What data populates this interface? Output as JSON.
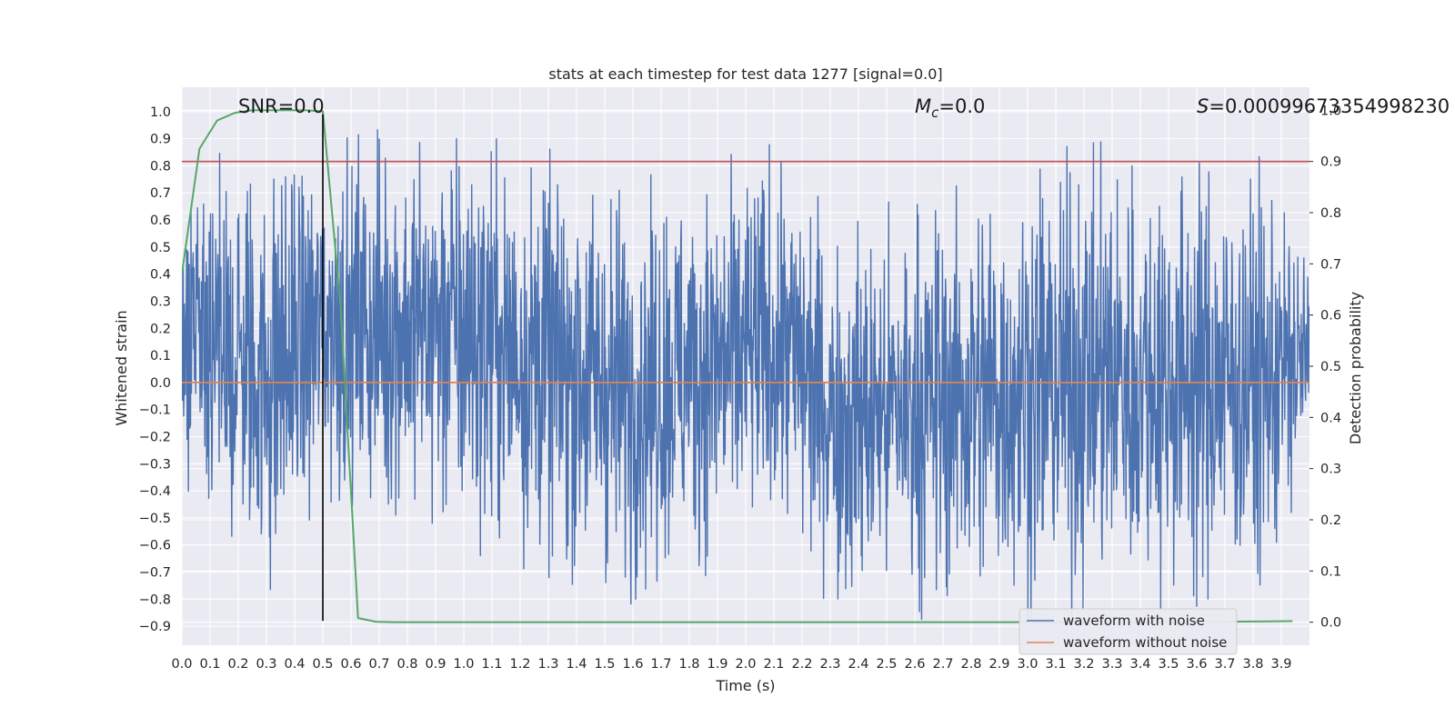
{
  "chart_data": {
    "type": "line",
    "title": "stats at each timestep for test data 1277 [signal=0.0]",
    "xlabel": "Time (s)",
    "ylabel": "Whitened strain",
    "y2label": "Detection probability",
    "xlim": [
      0.0,
      4.0
    ],
    "ylim": [
      -0.97,
      1.09
    ],
    "y2lim": [
      -0.045,
      1.045
    ],
    "xticks": [
      "0.0",
      "0.1",
      "0.2",
      "0.3",
      "0.4",
      "0.5",
      "0.6",
      "0.7",
      "0.8",
      "0.9",
      "1.0",
      "1.1",
      "1.2",
      "1.3",
      "1.4",
      "1.5",
      "1.6",
      "1.7",
      "1.8",
      "1.9",
      "2.0",
      "2.1",
      "2.2",
      "2.3",
      "2.4",
      "2.5",
      "2.6",
      "2.7",
      "2.8",
      "2.9",
      "3.0",
      "3.1",
      "3.2",
      "3.3",
      "3.4",
      "3.5",
      "3.6",
      "3.7",
      "3.8",
      "3.9"
    ],
    "yticks": [
      "-0.9",
      "-0.8",
      "-0.7",
      "-0.6",
      "-0.5",
      "-0.4",
      "-0.3",
      "-0.2",
      "-0.1",
      "0.0",
      "0.1",
      "0.2",
      "0.3",
      "0.4",
      "0.5",
      "0.6",
      "0.7",
      "0.8",
      "0.9",
      "1.0"
    ],
    "y2ticks": [
      "0.0",
      "0.1",
      "0.2",
      "0.3",
      "0.4",
      "0.5",
      "0.6",
      "0.7",
      "0.8",
      "0.9",
      "1.0"
    ],
    "grid": true,
    "legend_position": "lower-right",
    "series": [
      {
        "name": "waveform with noise",
        "axis": "left",
        "color": "#4c72b0",
        "style": "dense noise, range approx -0.88 to 1.0",
        "envelope": [
          {
            "t": 0.0,
            "min": -0.4,
            "max": 0.85
          },
          {
            "t": 0.3,
            "min": -0.84,
            "max": 0.88
          },
          {
            "t": 0.5,
            "min": -0.46,
            "max": 0.88
          },
          {
            "t": 0.94,
            "min": -0.6,
            "max": 1.0
          },
          {
            "t": 1.6,
            "min": -0.82,
            "max": 0.75
          },
          {
            "t": 2.13,
            "min": -0.6,
            "max": 0.89
          },
          {
            "t": 2.33,
            "min": -0.87,
            "max": 0.6
          },
          {
            "t": 3.0,
            "min": -0.88,
            "max": 0.85
          },
          {
            "t": 3.27,
            "min": -0.85,
            "max": 0.89
          },
          {
            "t": 3.85,
            "min": -0.82,
            "max": 0.83
          },
          {
            "t": 4.0,
            "min": -0.35,
            "max": 0.55
          }
        ]
      },
      {
        "name": "waveform without noise",
        "axis": "left",
        "color": "#dd8452",
        "x": [
          0.0,
          4.0
        ],
        "y": [
          0.0,
          0.0
        ]
      },
      {
        "name": "",
        "axis": "right",
        "color": "#55a868",
        "x": [
          0.0,
          0.0625,
          0.125,
          0.1875,
          0.25,
          0.3125,
          0.375,
          0.4375,
          0.5,
          0.5625,
          0.625,
          0.6875,
          0.75,
          1.0,
          1.5,
          2.0,
          2.5,
          3.0,
          3.5,
          3.94
        ],
        "y": [
          0.68,
          0.925,
          0.98,
          0.995,
          1.0,
          1.0,
          1.0,
          1.0,
          0.998,
          0.62,
          0.008,
          0.001,
          0.0,
          0.0,
          0.0,
          0.0,
          0.0,
          0.0,
          0.0,
          0.002
        ]
      }
    ],
    "hlines": [
      {
        "axis": "right",
        "y": 0.9,
        "color": "#c44e52"
      }
    ],
    "vlines": [
      {
        "x": 0.5,
        "ymin": -0.88,
        "ymax": 0.99,
        "color": "#000000"
      }
    ],
    "annotations": [
      {
        "text": "SNR=0.0",
        "x": 0.2
      },
      {
        "text_main": "M",
        "text_sub": "c",
        "text_rest": "=0.0",
        "x": 2.6
      },
      {
        "text_main": "S",
        "text_rest": "=0.00099673354998230",
        "x": 3.6
      }
    ]
  }
}
